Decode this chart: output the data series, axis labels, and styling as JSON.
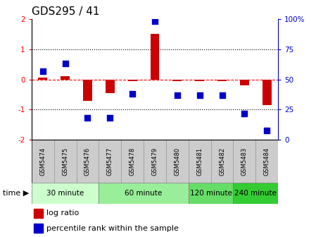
{
  "title": "GDS295 / 41",
  "samples": [
    "GSM5474",
    "GSM5475",
    "GSM5476",
    "GSM5477",
    "GSM5478",
    "GSM5479",
    "GSM5480",
    "GSM5481",
    "GSM5482",
    "GSM5483",
    "GSM5484"
  ],
  "log_ratio": [
    0.05,
    0.1,
    -0.7,
    -0.45,
    -0.05,
    1.5,
    -0.05,
    -0.05,
    -0.05,
    -0.2,
    -0.85
  ],
  "percentile_rank": [
    57,
    63,
    18,
    18,
    38,
    98,
    37,
    37,
    37,
    22,
    8
  ],
  "bar_color": "#cc0000",
  "dot_color": "#0000cc",
  "ylim_left": [
    -2,
    2
  ],
  "ylim_right": [
    0,
    100
  ],
  "yticks_left": [
    -2,
    -1,
    0,
    1,
    2
  ],
  "yticks_right": [
    0,
    25,
    50,
    75,
    100
  ],
  "ytick_labels_right": [
    "0",
    "25",
    "50",
    "75",
    "100%"
  ],
  "groups": [
    {
      "label": "30 minute",
      "start": 0,
      "end": 2,
      "color": "#ccffcc"
    },
    {
      "label": "60 minute",
      "start": 3,
      "end": 6,
      "color": "#99ee99"
    },
    {
      "label": "120 minute",
      "start": 7,
      "end": 8,
      "color": "#66dd66"
    },
    {
      "label": "240 minute",
      "start": 9,
      "end": 10,
      "color": "#33cc33"
    }
  ],
  "legend_log_ratio": "log ratio",
  "legend_percentile": "percentile rank within the sample",
  "bar_width": 0.4,
  "dot_size": 35,
  "background_color": "#ffffff",
  "sample_box_color": "#cccccc",
  "sample_box_edge": "#999999"
}
